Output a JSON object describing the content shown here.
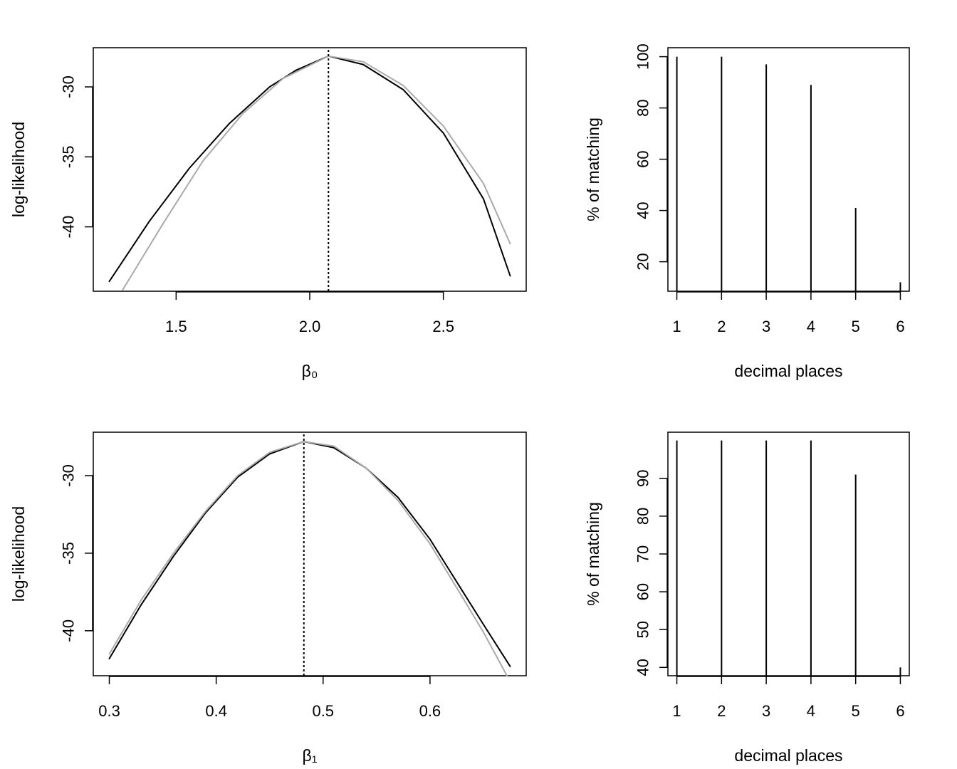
{
  "chart_data": [
    {
      "id": "loglik-b0",
      "type": "line",
      "title": "",
      "xlabel": "β₀",
      "ylabel": "log-likelihood",
      "xlim": [
        1.19,
        2.81
      ],
      "ylim": [
        -44.6,
        -27.2
      ],
      "xticks": [
        1.5,
        2.0,
        2.5
      ],
      "xtick_labels": [
        "1.5",
        "2.0",
        "2.5"
      ],
      "yticks": [
        -40,
        -35,
        -30
      ],
      "ytick_labels": [
        "-40",
        "-35",
        "-30"
      ],
      "vline": 2.07,
      "series": [
        {
          "color": "#000000",
          "x": [
            1.25,
            1.4,
            1.55,
            1.7,
            1.85,
            1.95,
            2.07,
            2.2,
            2.35,
            2.5,
            2.65,
            2.75
          ],
          "y": [
            -43.9,
            -39.6,
            -35.8,
            -32.6,
            -30.0,
            -28.8,
            -27.8,
            -28.4,
            -30.2,
            -33.3,
            -38.0,
            -43.5
          ]
        },
        {
          "color": "#aaaaaa",
          "x": [
            1.3,
            1.45,
            1.6,
            1.75,
            1.9,
            2.07,
            2.2,
            2.35,
            2.5,
            2.65,
            2.75
          ],
          "y": [
            -44.5,
            -39.8,
            -35.3,
            -31.9,
            -29.4,
            -27.8,
            -28.2,
            -29.9,
            -32.8,
            -36.9,
            -41.2
          ]
        }
      ]
    },
    {
      "id": "match-b0",
      "type": "bar",
      "title": "",
      "xlabel": "decimal places",
      "ylabel": "% of matching",
      "xlim": [
        0.8,
        6.2
      ],
      "ylim": [
        8.5,
        103.5
      ],
      "xticks": [
        1,
        2,
        3,
        4,
        5,
        6
      ],
      "xtick_labels": [
        "1",
        "2",
        "3",
        "4",
        "5",
        "6"
      ],
      "yticks": [
        20,
        40,
        60,
        80,
        100
      ],
      "ytick_labels": [
        "20",
        "40",
        "60",
        "80",
        "100"
      ],
      "categories": [
        1,
        2,
        3,
        4,
        5,
        6
      ],
      "values": [
        100,
        100,
        97,
        89,
        41,
        12
      ]
    },
    {
      "id": "loglik-b1",
      "type": "line",
      "title": "",
      "xlabel": "β₁",
      "ylabel": "log-likelihood",
      "xlim": [
        0.285,
        0.69
      ],
      "ylim": [
        -42.9,
        -27.2
      ],
      "xticks": [
        0.3,
        0.4,
        0.5,
        0.6
      ],
      "xtick_labels": [
        "0.3",
        "0.4",
        "0.5",
        "0.6"
      ],
      "yticks": [
        -40,
        -35,
        -30
      ],
      "ytick_labels": [
        "-40",
        "-35",
        "-30"
      ],
      "vline": 0.482,
      "series": [
        {
          "color": "#000000",
          "x": [
            0.3,
            0.33,
            0.36,
            0.39,
            0.42,
            0.45,
            0.482,
            0.51,
            0.54,
            0.57,
            0.6,
            0.63,
            0.65,
            0.675
          ],
          "y": [
            -41.8,
            -38.3,
            -35.2,
            -32.4,
            -30.1,
            -28.6,
            -27.8,
            -28.2,
            -29.5,
            -31.4,
            -34.1,
            -37.4,
            -39.6,
            -42.3
          ]
        },
        {
          "color": "#aaaaaa",
          "x": [
            0.3,
            0.33,
            0.36,
            0.39,
            0.42,
            0.45,
            0.482,
            0.51,
            0.54,
            0.57,
            0.6,
            0.63,
            0.65,
            0.672
          ],
          "y": [
            -41.5,
            -38.0,
            -35.0,
            -32.3,
            -30.0,
            -28.5,
            -27.8,
            -28.1,
            -29.5,
            -31.6,
            -34.4,
            -37.8,
            -40.1,
            -42.9
          ]
        }
      ]
    },
    {
      "id": "match-b1",
      "type": "bar",
      "title": "",
      "xlabel": "decimal places",
      "ylabel": "% of matching",
      "xlim": [
        0.8,
        6.2
      ],
      "ylim": [
        37.8,
        102.2
      ],
      "xticks": [
        1,
        2,
        3,
        4,
        5,
        6
      ],
      "xtick_labels": [
        "1",
        "2",
        "3",
        "4",
        "5",
        "6"
      ],
      "yticks": [
        40,
        50,
        60,
        70,
        80,
        90
      ],
      "ytick_labels": [
        "40",
        "50",
        "60",
        "70",
        "80",
        "90"
      ],
      "categories": [
        1,
        2,
        3,
        4,
        5,
        6
      ],
      "values": [
        100,
        100,
        100,
        100,
        91,
        40
      ]
    }
  ]
}
